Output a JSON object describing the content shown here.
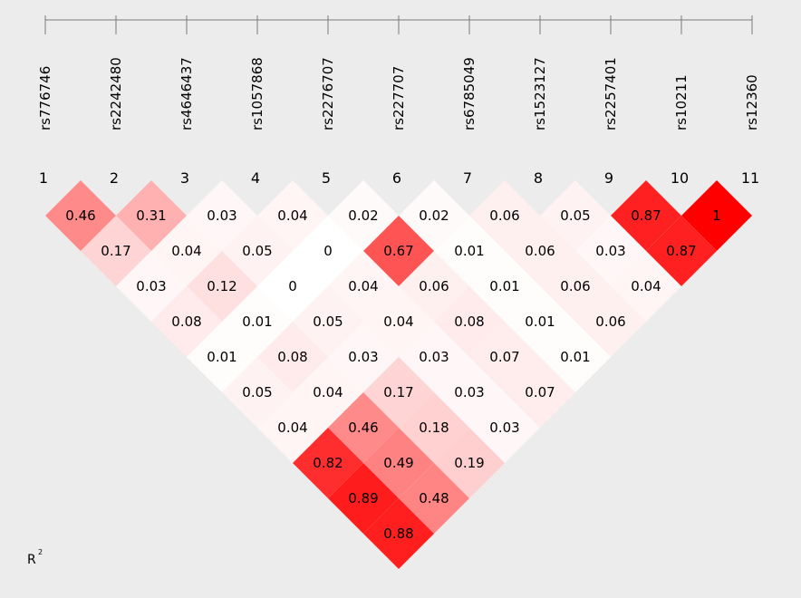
{
  "chart_data": {
    "type": "heatmap",
    "measure": "R²",
    "legend_label": "R",
    "legend_superscript": "2",
    "snps": [
      "rs776746",
      "rs2242480",
      "rs4646437",
      "rs1057868",
      "rs2276707",
      "rs227707",
      "rs6785049",
      "rs1523127",
      "rs2257401",
      "rs10211",
      "rs12360"
    ],
    "indices": [
      "1",
      "2",
      "3",
      "4",
      "5",
      "6",
      "7",
      "8",
      "9",
      "10",
      "11"
    ],
    "color_scale": {
      "low": "#ffffff",
      "high": "#ff0000"
    },
    "pairs": [
      {
        "i": 1,
        "j": 2,
        "label": "0.46",
        "r2": 0.46
      },
      {
        "i": 2,
        "j": 3,
        "label": "0.31",
        "r2": 0.31
      },
      {
        "i": 3,
        "j": 4,
        "label": "0.03",
        "r2": 0.03
      },
      {
        "i": 4,
        "j": 5,
        "label": "0.04",
        "r2": 0.04
      },
      {
        "i": 5,
        "j": 6,
        "label": "0.02",
        "r2": 0.02
      },
      {
        "i": 6,
        "j": 7,
        "label": "0.02",
        "r2": 0.02
      },
      {
        "i": 7,
        "j": 8,
        "label": "0.06",
        "r2": 0.06
      },
      {
        "i": 8,
        "j": 9,
        "label": "0.05",
        "r2": 0.05
      },
      {
        "i": 9,
        "j": 10,
        "label": "0.87",
        "r2": 0.87
      },
      {
        "i": 10,
        "j": 11,
        "label": "1",
        "r2": 1.0
      },
      {
        "i": 1,
        "j": 3,
        "label": "0.17",
        "r2": 0.17
      },
      {
        "i": 2,
        "j": 4,
        "label": "0.04",
        "r2": 0.04
      },
      {
        "i": 3,
        "j": 5,
        "label": "0.05",
        "r2": 0.05
      },
      {
        "i": 4,
        "j": 6,
        "label": "0",
        "r2": 0.0
      },
      {
        "i": 5,
        "j": 7,
        "label": "0.67",
        "r2": 0.67
      },
      {
        "i": 6,
        "j": 8,
        "label": "0.01",
        "r2": 0.01
      },
      {
        "i": 7,
        "j": 9,
        "label": "0.06",
        "r2": 0.06
      },
      {
        "i": 8,
        "j": 10,
        "label": "0.03",
        "r2": 0.03
      },
      {
        "i": 9,
        "j": 11,
        "label": "0.87",
        "r2": 0.87
      },
      {
        "i": 1,
        "j": 4,
        "label": "0.03",
        "r2": 0.03
      },
      {
        "i": 2,
        "j": 5,
        "label": "0.12",
        "r2": 0.12
      },
      {
        "i": 3,
        "j": 6,
        "label": "0",
        "r2": 0.0
      },
      {
        "i": 4,
        "j": 7,
        "label": "0.04",
        "r2": 0.04
      },
      {
        "i": 5,
        "j": 8,
        "label": "0.06",
        "r2": 0.06
      },
      {
        "i": 6,
        "j": 9,
        "label": "0.01",
        "r2": 0.01
      },
      {
        "i": 7,
        "j": 10,
        "label": "0.06",
        "r2": 0.06
      },
      {
        "i": 8,
        "j": 11,
        "label": "0.04",
        "r2": 0.04
      },
      {
        "i": 1,
        "j": 5,
        "label": "0.08",
        "r2": 0.08
      },
      {
        "i": 2,
        "j": 6,
        "label": "0.01",
        "r2": 0.01
      },
      {
        "i": 3,
        "j": 7,
        "label": "0.05",
        "r2": 0.05
      },
      {
        "i": 4,
        "j": 8,
        "label": "0.04",
        "r2": 0.04
      },
      {
        "i": 5,
        "j": 9,
        "label": "0.08",
        "r2": 0.08
      },
      {
        "i": 6,
        "j": 10,
        "label": "0.01",
        "r2": 0.01
      },
      {
        "i": 7,
        "j": 11,
        "label": "0.06",
        "r2": 0.06
      },
      {
        "i": 1,
        "j": 6,
        "label": "0.01",
        "r2": 0.01
      },
      {
        "i": 2,
        "j": 7,
        "label": "0.08",
        "r2": 0.08
      },
      {
        "i": 3,
        "j": 8,
        "label": "0.03",
        "r2": 0.03
      },
      {
        "i": 4,
        "j": 9,
        "label": "0.03",
        "r2": 0.03
      },
      {
        "i": 5,
        "j": 10,
        "label": "0.07",
        "r2": 0.07
      },
      {
        "i": 6,
        "j": 11,
        "label": "0.01",
        "r2": 0.01
      },
      {
        "i": 1,
        "j": 7,
        "label": "0.05",
        "r2": 0.05
      },
      {
        "i": 2,
        "j": 8,
        "label": "0.04",
        "r2": 0.04
      },
      {
        "i": 3,
        "j": 9,
        "label": "0.17",
        "r2": 0.17
      },
      {
        "i": 4,
        "j": 10,
        "label": "0.03",
        "r2": 0.03
      },
      {
        "i": 5,
        "j": 11,
        "label": "0.07",
        "r2": 0.07
      },
      {
        "i": 1,
        "j": 8,
        "label": "0.04",
        "r2": 0.04
      },
      {
        "i": 2,
        "j": 9,
        "label": "0.46",
        "r2": 0.46
      },
      {
        "i": 3,
        "j": 10,
        "label": "0.18",
        "r2": 0.18
      },
      {
        "i": 4,
        "j": 11,
        "label": "0.03",
        "r2": 0.03
      },
      {
        "i": 1,
        "j": 9,
        "label": "0.82",
        "r2": 0.82
      },
      {
        "i": 2,
        "j": 10,
        "label": "0.49",
        "r2": 0.49
      },
      {
        "i": 3,
        "j": 11,
        "label": "0.19",
        "r2": 0.19
      },
      {
        "i": 1,
        "j": 10,
        "label": "0.89",
        "r2": 0.89
      },
      {
        "i": 2,
        "j": 11,
        "label": "0.48",
        "r2": 0.48
      },
      {
        "i": 1,
        "j": 11,
        "label": "0.88",
        "r2": 0.88
      }
    ]
  }
}
